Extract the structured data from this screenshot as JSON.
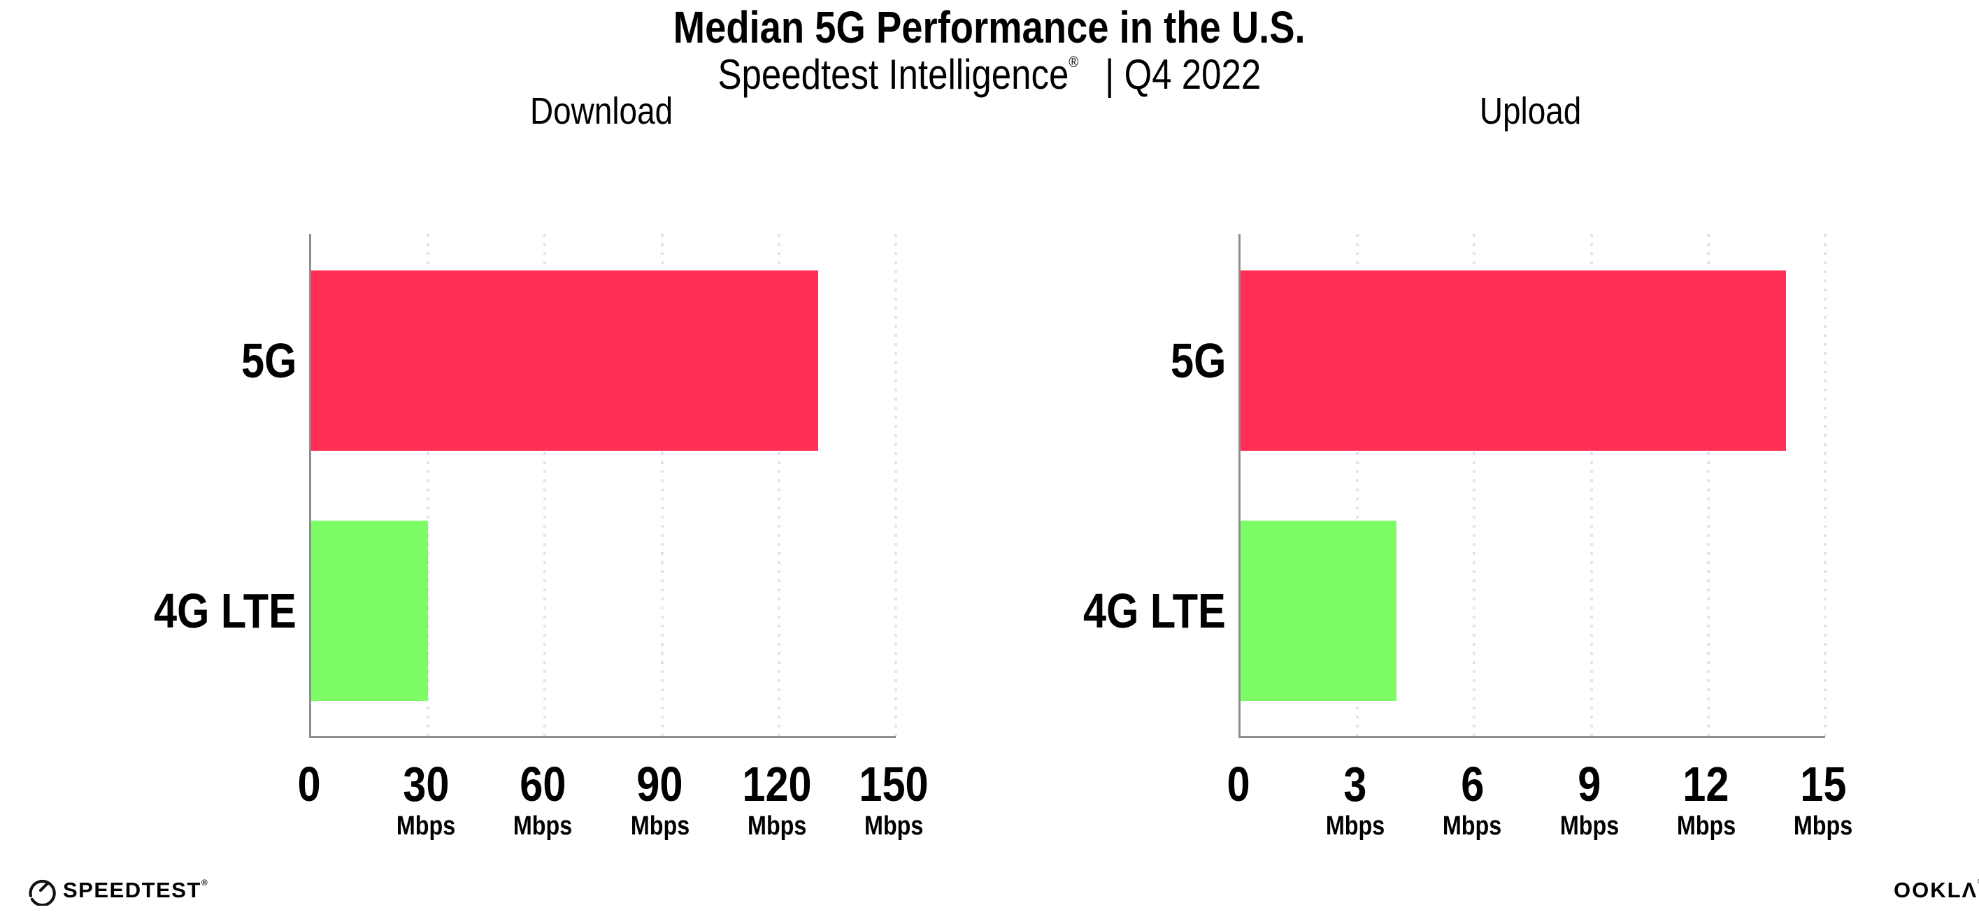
{
  "title": "Median 5G Performance in the U.S.",
  "subtitle": {
    "product": "Speedtest Intelligence",
    "registered_mark": "®",
    "rest": "| Q4 2022"
  },
  "colors": {
    "background": "#ffffff",
    "series": [
      "#ff2e55",
      "#7dfc65"
    ],
    "series_names": [
      "5G",
      "4G LTE"
    ],
    "axis": "#8f8f8f",
    "gridline": "#e3e3ee",
    "text": "#000000"
  },
  "chart_data": [
    {
      "type": "bar",
      "orientation": "horizontal",
      "title": "Download",
      "categories": [
        "5G",
        "4G LTE"
      ],
      "values": [
        130,
        30
      ],
      "unit": "Mbps",
      "xlim": [
        0,
        150
      ],
      "xticks": [
        0,
        30,
        60,
        90,
        120,
        150
      ],
      "tick_unit_label": "Mbps",
      "grid": "dotted vertical gridlines at each tick, no unit label under 0"
    },
    {
      "type": "bar",
      "orientation": "horizontal",
      "title": "Upload",
      "categories": [
        "5G",
        "4G LTE"
      ],
      "values": [
        14,
        4
      ],
      "unit": "Mbps",
      "xlim": [
        0,
        15
      ],
      "xticks": [
        0,
        3,
        6,
        9,
        12,
        15
      ],
      "tick_unit_label": "Mbps",
      "grid": "dotted vertical gridlines at each tick, no unit label under 0"
    }
  ],
  "footer": {
    "speedtest_logo_text": "SPEEDTEST",
    "speedtest_trademark": "®",
    "ookla_logo_text": "OOKLΛ",
    "ookla_trademark": "®"
  }
}
